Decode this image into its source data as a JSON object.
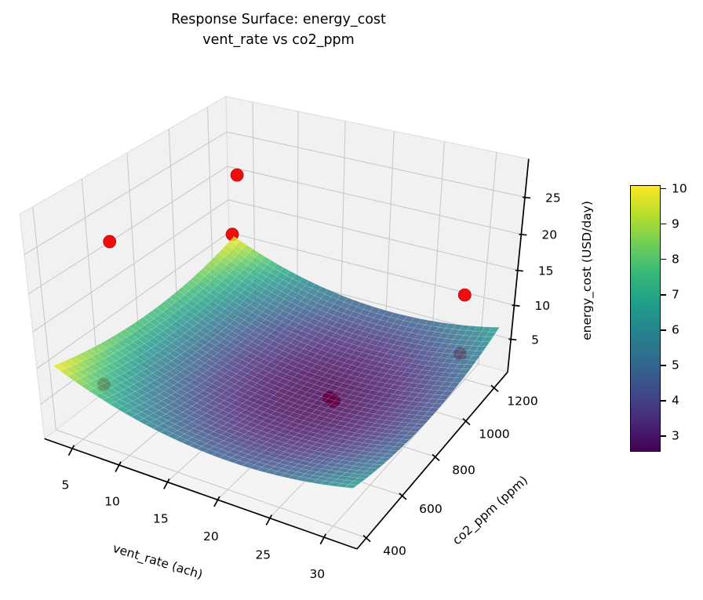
{
  "chart_data": {
    "type": "surface3d",
    "title": "Response Surface: energy_cost",
    "subtitle": "vent_rate vs co2_ppm",
    "view": {
      "elev": 30,
      "azim": -60,
      "legend": "none",
      "grid": true
    },
    "axes": {
      "x": {
        "label": "vent_rate (ach)",
        "ticks": [
          5,
          10,
          15,
          20,
          25,
          30
        ],
        "range": [
          2,
          33
        ]
      },
      "y": {
        "label": "co2_ppm (ppm)",
        "ticks": [
          400,
          600,
          800,
          1000,
          1200
        ],
        "range": [
          350,
          1300
        ]
      },
      "z": {
        "label": "energy_cost (USD/day)",
        "ticks": [
          5,
          10,
          15,
          20,
          25
        ],
        "range": [
          0,
          30
        ]
      }
    },
    "surface": {
      "x_range": [
        3,
        32
      ],
      "y_range": [
        380,
        1280
      ],
      "grid_n": 40,
      "alpha": 0.82,
      "model": {
        "intercept": 2.6,
        "x_center": 21,
        "x_coeff": 0.01627,
        "y_center": 830,
        "y_coeff": 1.1e-05
      },
      "model_formula": "z = 2.6 + 0.01627*(x-21)^2 + 0.000011*(y-830)^2"
    },
    "colormap": {
      "name": "viridis",
      "vmin": 2.6,
      "vmax": 10.1,
      "stops": [
        "#440154",
        "#482878",
        "#3e4a89",
        "#31688e",
        "#26828e",
        "#1f9e89",
        "#35b779",
        "#6ece58",
        "#b5de2b",
        "#fde725"
      ]
    },
    "colorbar": {
      "ticks": [
        3,
        4,
        5,
        6,
        7,
        8,
        9,
        10
      ]
    },
    "scatter": {
      "color": "#ee0e0e",
      "points": [
        [
          3.5,
          1280,
          19.5
        ],
        [
          7.5,
          480,
          26
        ],
        [
          3,
          1270,
          10.6
        ],
        [
          30,
          1150,
          13.5
        ],
        [
          30,
          1150,
          5
        ],
        [
          6.5,
          450,
          7.3
        ],
        [
          22,
          830,
          2.8
        ],
        [
          22.3,
          840,
          2.2
        ]
      ]
    },
    "style": {
      "pane_color": "#f1f1f1",
      "floor_color": "#f4f4f4",
      "grid_color": "#c9c9c9",
      "axis_color": "#000000",
      "background": "#ffffff"
    }
  }
}
